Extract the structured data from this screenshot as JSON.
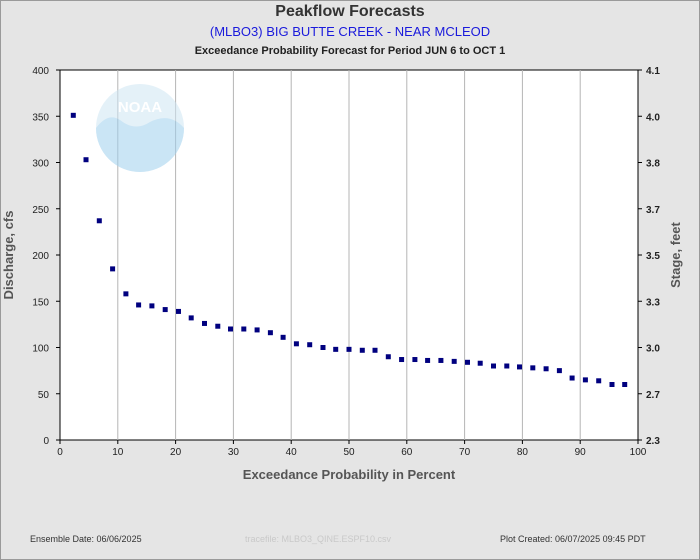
{
  "title": "Peakflow Forecasts",
  "subtitle": "(MLBO3) BIG BUTTE CREEK - NEAR MCLEOD",
  "caption": "Exceedance Probability Forecast for Period JUN 6 to OCT 1",
  "footer": {
    "ensemble_date": "Ensemble Date: 06/06/2025",
    "tracefile": "tracefile: MLBO3_QINE.ESPF10.csv",
    "plot_created": "Plot Created: 06/07/2025 09:45 PDT"
  },
  "watermark_text": "NOAA",
  "colors": {
    "points": "#00007f",
    "title": "#333333",
    "subtitle": "#1a1adc",
    "grid": "#b5b5b5",
    "background": "#e5e5e5",
    "plot_area": "#ffffff"
  },
  "chart_data": {
    "type": "scatter",
    "xlabel": "Exceedance Probability in Percent",
    "ylabel": "Discharge, cfs",
    "y2label": "Stage, feet",
    "xlim": [
      0,
      100
    ],
    "ylim": [
      0,
      400
    ],
    "xticks": [
      "0",
      "10",
      "20",
      "30",
      "40",
      "50",
      "60",
      "70",
      "80",
      "90",
      "100"
    ],
    "yticks": [
      "0",
      "50",
      "100",
      "150",
      "200",
      "250",
      "300",
      "350",
      "400"
    ],
    "y2ticks": [
      "2.3",
      "2.7",
      "3.0",
      "3.3",
      "3.5",
      "3.7",
      "3.8",
      "4.0",
      "4.1"
    ],
    "grid": true,
    "series": [
      {
        "x": [
          2.3,
          4.5,
          6.8,
          9.1,
          11.4,
          13.6,
          15.9,
          18.2,
          20.5,
          22.7,
          25.0,
          27.3,
          29.5,
          31.8,
          34.1,
          36.4,
          38.6,
          40.9,
          43.2,
          45.5,
          47.7,
          50.0,
          52.3,
          54.5,
          56.8,
          59.1,
          61.4,
          63.6,
          65.9,
          68.2,
          70.5,
          72.7,
          75.0,
          77.3,
          79.5,
          81.8,
          84.1,
          86.4,
          88.6,
          90.9,
          93.2,
          95.5,
          97.7
        ],
        "y": [
          351,
          303,
          237,
          185,
          158,
          146,
          145,
          141,
          139,
          132,
          126,
          123,
          120,
          120,
          119,
          116,
          111,
          104,
          103,
          100,
          98,
          98,
          97,
          97,
          90,
          87,
          87,
          86,
          86,
          85,
          84,
          83,
          80,
          80,
          79,
          78,
          77,
          75,
          67,
          65,
          64,
          60,
          60
        ]
      }
    ]
  }
}
